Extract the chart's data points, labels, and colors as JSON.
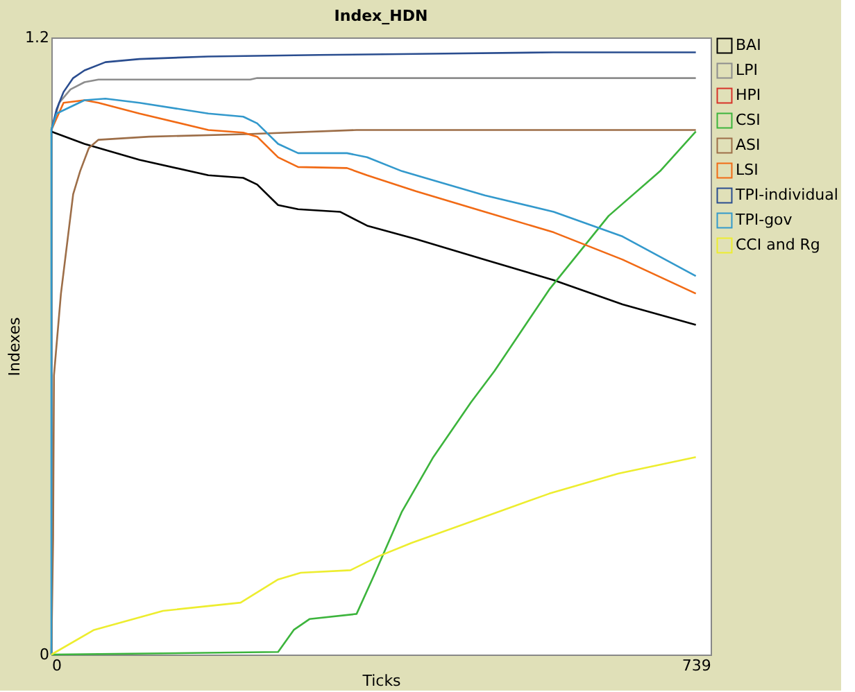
{
  "chart_data": {
    "type": "line",
    "title": "Index_HDN",
    "xlabel": "Ticks",
    "ylabel": "Indexes",
    "xlim": [
      0,
      756
    ],
    "ylim": [
      0,
      1.2
    ],
    "xticks": [
      0,
      739
    ],
    "yticks": [
      0,
      1.2
    ],
    "grid": false,
    "legend": "right",
    "marker": "none",
    "line_style": "solid",
    "series": [
      {
        "name": "BAI",
        "color": "#000000",
        "x": [
          0,
          38,
          101,
          180,
          220,
          236,
          260,
          283,
          331,
          362,
          418,
          497,
          576,
          655,
          739
        ],
        "values": [
          1.017,
          0.993,
          0.962,
          0.932,
          0.927,
          0.914,
          0.874,
          0.866,
          0.861,
          0.834,
          0.808,
          0.768,
          0.728,
          0.681,
          0.641
        ]
      },
      {
        "name": "LPI",
        "color": "#8d8d8d",
        "x": [
          0,
          9,
          22,
          38,
          54,
          228,
          236,
          739
        ],
        "values": [
          1.02,
          1.073,
          1.099,
          1.113,
          1.118,
          1.118,
          1.121,
          1.121
        ]
      },
      {
        "name": "HPI",
        "color": "#d73229"
      },
      {
        "name": "CSI",
        "color": "#3cb43c",
        "x": [
          0,
          260,
          278,
          296,
          350,
          370,
          402,
          438,
          481,
          508,
          571,
          639,
          698,
          739
        ],
        "values": [
          0,
          0.005,
          0.048,
          0.069,
          0.079,
          0.154,
          0.278,
          0.384,
          0.49,
          0.551,
          0.71,
          0.853,
          0.94,
          1.017
        ]
      },
      {
        "name": "ASI",
        "color": "#9d6e48",
        "x": [
          0,
          2,
          3,
          11,
          25,
          33,
          43,
          54,
          112,
          223,
          350,
          739
        ],
        "values": [
          0,
          0.225,
          0.543,
          0.702,
          0.895,
          0.94,
          0.985,
          1.001,
          1.007,
          1.012,
          1.02,
          1.02
        ]
      },
      {
        "name": "LSI",
        "color": "#f16a15",
        "x": [
          0,
          14,
          38,
          54,
          101,
          180,
          220,
          236,
          260,
          283,
          339,
          362,
          418,
          497,
          576,
          655,
          739
        ],
        "values": [
          1.02,
          1.073,
          1.078,
          1.073,
          1.052,
          1.02,
          1.015,
          1.007,
          0.967,
          0.948,
          0.946,
          0.932,
          0.901,
          0.861,
          0.821,
          0.768,
          0.702
        ]
      },
      {
        "name": "TPI-individual",
        "color": "#2a4d8f",
        "x": [
          0,
          6,
          14,
          25,
          38,
          62,
          101,
          180,
          307,
          418,
          576,
          739
        ],
        "values": [
          1.02,
          1.06,
          1.094,
          1.121,
          1.136,
          1.152,
          1.158,
          1.163,
          1.166,
          1.168,
          1.171,
          1.171
        ]
      },
      {
        "name": "TPI-gov",
        "color": "#3399cc",
        "x": [
          0,
          0,
          6,
          38,
          62,
          101,
          180,
          220,
          236,
          260,
          283,
          339,
          362,
          402,
          497,
          576,
          655,
          739
        ],
        "values": [
          0,
          1.02,
          1.052,
          1.078,
          1.081,
          1.073,
          1.052,
          1.046,
          1.033,
          0.993,
          0.975,
          0.975,
          0.967,
          0.94,
          0.893,
          0.861,
          0.813,
          0.736
        ]
      },
      {
        "name": "CCI and Rg",
        "color": "#eded2f",
        "x": [
          0,
          49,
          128,
          217,
          260,
          286,
          343,
          375,
          413,
          492,
          571,
          650,
          739
        ],
        "values": [
          0,
          0.048,
          0.085,
          0.101,
          0.146,
          0.159,
          0.164,
          0.191,
          0.217,
          0.265,
          0.313,
          0.352,
          0.384
        ]
      }
    ]
  }
}
